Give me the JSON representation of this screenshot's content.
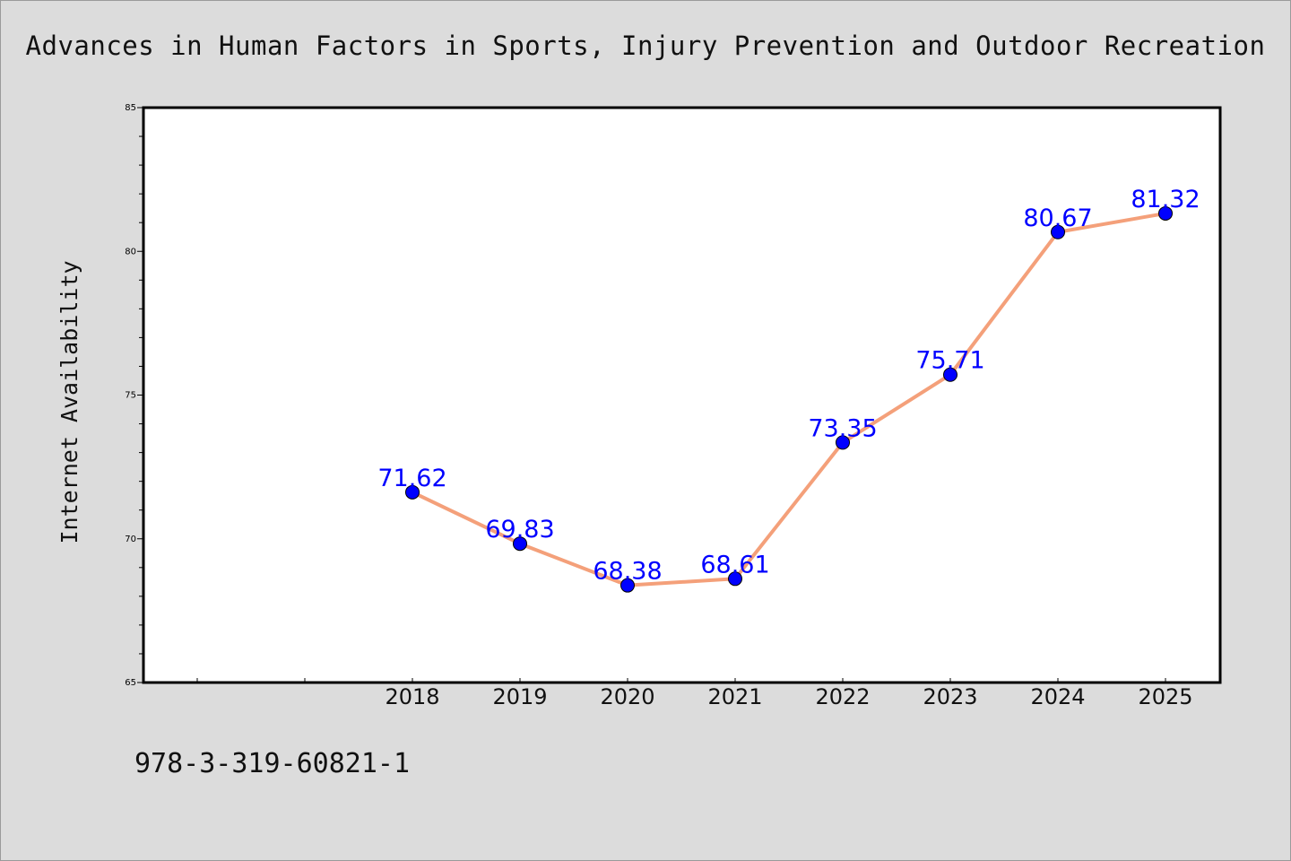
{
  "page": {
    "footer_code": "978-3-319-60821-1"
  },
  "chart_data": {
    "type": "line",
    "title": "Advances in Human Factors in Sports, Injury Prevention and Outdoor Recreation",
    "xlabel": "",
    "ylabel": "Internet Availability",
    "categories": [
      "2018",
      "2019",
      "2020",
      "2021",
      "2022",
      "2023",
      "2024",
      "2025"
    ],
    "series": [
      {
        "values": [
          71.62,
          69.83,
          68.38,
          68.61,
          73.35,
          75.71,
          80.67,
          81.32
        ],
        "labels": [
          "71.62",
          "69.83",
          "68.38",
          "68.61",
          "73.35",
          "75.71",
          "80.67",
          "81.32"
        ]
      }
    ],
    "ylim": [
      65,
      85
    ],
    "yticks": [
      65,
      70,
      75,
      80,
      85
    ],
    "grid": false,
    "colors": {
      "line": "#f4a07a",
      "marker": "#0000ff",
      "label": "#0000ff",
      "plot_background": "#ffffff",
      "page_background": "#dcdcdc"
    }
  }
}
